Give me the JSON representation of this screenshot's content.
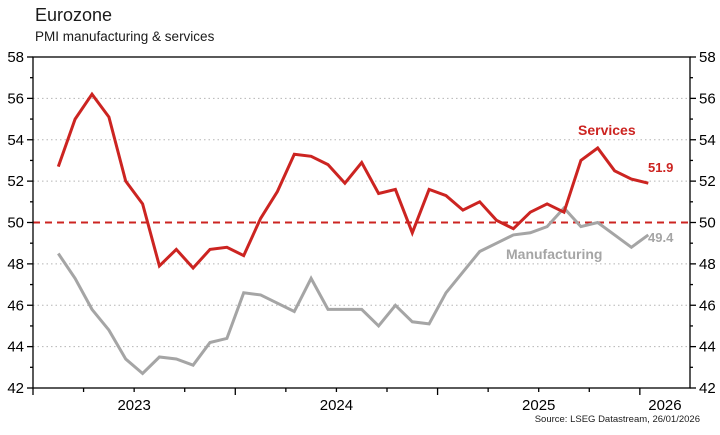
{
  "header": {
    "title": "Eurozone",
    "subtitle": "PMI manufacturing & services"
  },
  "chart_data": {
    "type": "line",
    "title": "Eurozone",
    "subtitle": "PMI manufacturing & services",
    "x_unit": "month",
    "x": [
      "Feb 2023",
      "Mar 2023",
      "Apr 2023",
      "May 2023",
      "Jun 2023",
      "Jul 2023",
      "Aug 2023",
      "Sep 2023",
      "Oct 2023",
      "Nov 2023",
      "Dec 2023",
      "Jan 2024",
      "Feb 2024",
      "Mar 2024",
      "Apr 2024",
      "May 2024",
      "Jun 2024",
      "Jul 2024",
      "Aug 2024",
      "Sep 2024",
      "Oct 2024",
      "Nov 2024",
      "Dec 2024",
      "Jan 2025",
      "Feb 2025",
      "Mar 2025",
      "Apr 2025",
      "May 2025",
      "Jun 2025",
      "Jul 2025",
      "Aug 2025",
      "Sep 2025",
      "Oct 2025",
      "Nov 2025",
      "Dec 2025",
      "Jan 2026"
    ],
    "series": [
      {
        "name": "Services",
        "color": "#cc2421",
        "end_label": "51.9",
        "values": [
          52.7,
          55.0,
          56.2,
          55.1,
          52.0,
          50.9,
          47.9,
          48.7,
          47.8,
          48.7,
          48.8,
          48.4,
          50.2,
          51.5,
          53.3,
          53.2,
          52.8,
          51.9,
          52.9,
          51.4,
          51.6,
          49.5,
          51.6,
          51.3,
          50.6,
          51.0,
          50.1,
          49.7,
          50.5,
          50.9,
          50.5,
          53.0,
          53.6,
          52.5,
          52.1,
          51.9
        ]
      },
      {
        "name": "Manufacturing",
        "color": "#a5a5a5",
        "end_label": "49.4",
        "values": [
          48.5,
          47.3,
          45.8,
          44.8,
          43.4,
          42.7,
          43.5,
          43.4,
          43.1,
          44.2,
          44.4,
          46.6,
          46.5,
          46.1,
          45.7,
          47.3,
          45.8,
          45.8,
          45.8,
          45.0,
          46.0,
          45.2,
          45.1,
          46.6,
          47.6,
          48.6,
          49.0,
          49.4,
          49.5,
          49.8,
          50.7,
          49.8,
          50.0,
          49.4,
          48.8,
          49.4
        ]
      }
    ],
    "ylim": [
      42,
      58
    ],
    "yticks": [
      42,
      44,
      46,
      48,
      50,
      52,
      54,
      56,
      58
    ],
    "grid_values": [
      44,
      46,
      48,
      52,
      54,
      56
    ],
    "reference_line": {
      "value": 50,
      "color": "#cc2421",
      "style": "dashed"
    },
    "x_year_labels": [
      "2023",
      "2024",
      "2025",
      "2026"
    ],
    "grid": "horizontal dotted",
    "legend_position": "inline annotations right of lines",
    "axis_labels_both_sides": true
  },
  "footer": {
    "source": "Source: LSEG Datastream, 26/01/2026"
  },
  "colors": {
    "services": "#cc2421",
    "manufacturing": "#a5a5a5",
    "grid": "#b5b5b5",
    "axis": "#000000"
  }
}
